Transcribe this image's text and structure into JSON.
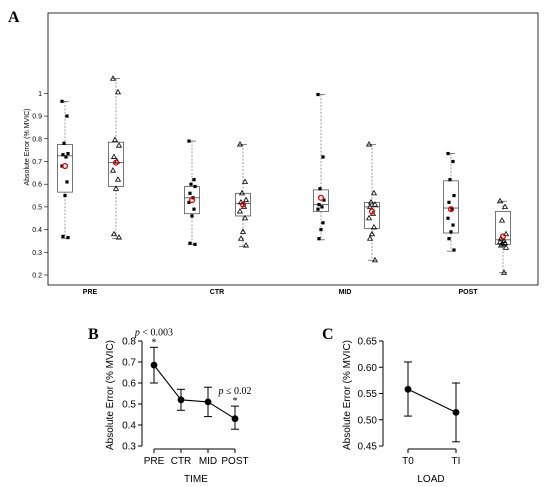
{
  "chart_data": [
    {
      "type": "box",
      "panel_label": "A",
      "ylabel": "Absolute Error (% MVIC)",
      "ylim": [
        0.2,
        1.08
      ],
      "yticks": [
        "0.2",
        "0.3",
        "0.4",
        "0.5",
        "0.6",
        "0.7",
        "0.8",
        "0.9",
        "1"
      ],
      "groups": [
        "PRE",
        "CTR",
        "MID",
        "POST"
      ],
      "series": [
        {
          "marker": "filled-square",
          "boxes": [
            {
              "group": "PRE",
              "whisker_low": 0.36,
              "q1": 0.565,
              "median": 0.725,
              "q3": 0.775,
              "whisker_high": 0.965,
              "mean": 0.68,
              "points": [
                0.965,
                0.9,
                0.78,
                0.735,
                0.73,
                0.72,
                0.68,
                0.61,
                0.55,
                0.37,
                0.365
              ]
            },
            {
              "group": "CTR",
              "whisker_low": 0.335,
              "q1": 0.47,
              "median": 0.54,
              "q3": 0.59,
              "whisker_high": 0.79,
              "mean": 0.53,
              "points": [
                0.79,
                0.62,
                0.6,
                0.59,
                0.56,
                0.54,
                0.52,
                0.49,
                0.46,
                0.34,
                0.335
              ]
            },
            {
              "group": "MID",
              "whisker_low": 0.355,
              "q1": 0.48,
              "median": 0.51,
              "q3": 0.575,
              "whisker_high": 0.995,
              "mean": 0.54,
              "points": [
                0.995,
                0.72,
                0.58,
                0.53,
                0.51,
                0.5,
                0.49,
                0.43,
                0.4,
                0.36
              ]
            },
            {
              "group": "POST",
              "whisker_low": 0.305,
              "q1": 0.385,
              "median": 0.495,
              "q3": 0.615,
              "whisker_high": 0.735,
              "mean": 0.49,
              "points": [
                0.735,
                0.7,
                0.62,
                0.55,
                0.52,
                0.49,
                0.45,
                0.42,
                0.39,
                0.36,
                0.31
              ]
            }
          ]
        },
        {
          "marker": "open-triangle",
          "boxes": [
            {
              "group": "PRE",
              "whisker_low": 0.36,
              "q1": 0.59,
              "median": 0.695,
              "q3": 0.785,
              "whisker_high": 1.065,
              "mean": 0.695,
              "points": [
                1.065,
                1.005,
                0.795,
                0.77,
                0.72,
                0.7,
                0.66,
                0.62,
                0.58,
                0.38,
                0.365
              ]
            },
            {
              "group": "CTR",
              "whisker_low": 0.325,
              "q1": 0.46,
              "median": 0.515,
              "q3": 0.56,
              "whisker_high": 0.775,
              "mean": 0.51,
              "points": [
                0.775,
                0.61,
                0.56,
                0.53,
                0.52,
                0.5,
                0.48,
                0.45,
                0.39,
                0.36,
                0.33
              ]
            },
            {
              "group": "MID",
              "whisker_low": 0.265,
              "q1": 0.405,
              "median": 0.5,
              "q3": 0.52,
              "whisker_high": 0.775,
              "mean": 0.48,
              "points": [
                0.775,
                0.56,
                0.52,
                0.51,
                0.5,
                0.47,
                0.45,
                0.41,
                0.38,
                0.36,
                0.265
              ]
            },
            {
              "group": "POST",
              "whisker_low": 0.21,
              "q1": 0.335,
              "median": 0.355,
              "q3": 0.48,
              "whisker_high": 0.525,
              "mean": 0.37,
              "points": [
                0.525,
                0.5,
                0.44,
                0.38,
                0.36,
                0.35,
                0.345,
                0.34,
                0.335,
                0.33,
                0.32,
                0.21
              ]
            }
          ]
        }
      ]
    },
    {
      "type": "line",
      "panel_label": "B",
      "xlabel": "TIME",
      "ylabel": "Absolute Error (% MVIC)",
      "categories": [
        "PRE",
        "CTR",
        "MID",
        "POST"
      ],
      "yticks": [
        "0.3",
        "0.4",
        "0.5",
        "0.6",
        "0.7",
        "0.8"
      ],
      "ylim": [
        0.3,
        0.8
      ],
      "values": [
        0.685,
        0.52,
        0.51,
        0.43
      ],
      "error_low": [
        0.6,
        0.47,
        0.44,
        0.38
      ],
      "error_high": [
        0.77,
        0.57,
        0.58,
        0.49
      ],
      "annotations": [
        {
          "category": "PRE",
          "star": "*",
          "p_italic": "p",
          "p_rest": " < 0.003"
        },
        {
          "category": "POST",
          "star": "*",
          "p_italic": "p",
          "p_rest": " ≤ 0.02"
        }
      ]
    },
    {
      "type": "line",
      "panel_label": "C",
      "xlabel": "LOAD",
      "ylabel": "Absolute Error (% MVIC)",
      "categories": [
        "T0",
        "TI"
      ],
      "yticks": [
        "0.45",
        "0.50",
        "0.55",
        "0.60",
        "0.65"
      ],
      "ylim": [
        0.45,
        0.65
      ],
      "values": [
        0.558,
        0.514
      ],
      "error_low": [
        0.507,
        0.458
      ],
      "error_high": [
        0.61,
        0.57
      ]
    }
  ]
}
